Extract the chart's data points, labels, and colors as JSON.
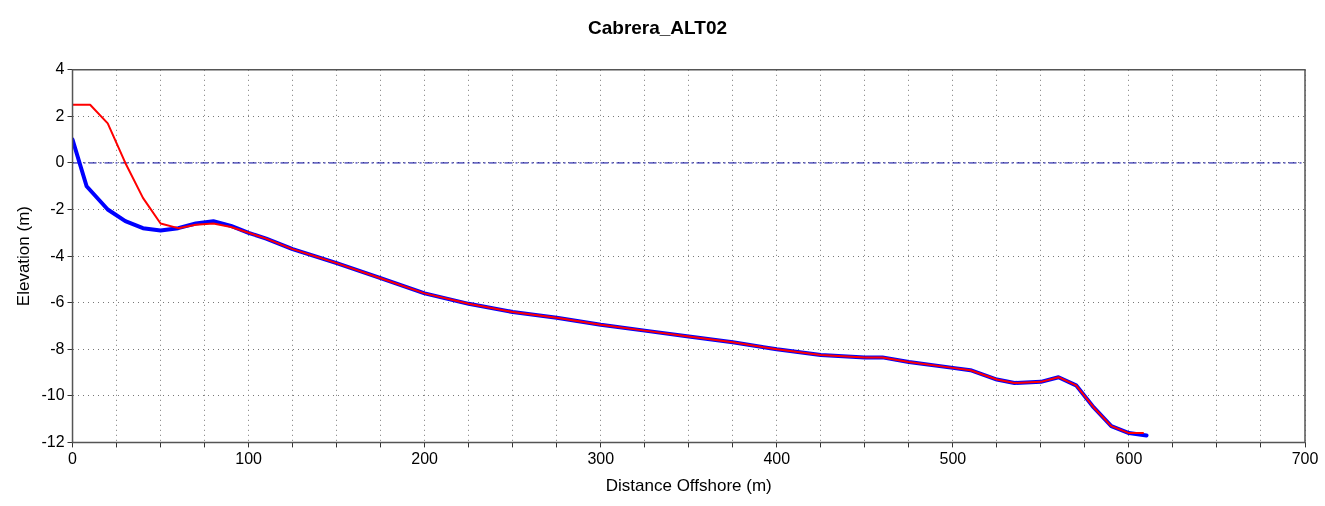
{
  "chart_data": {
    "type": "line",
    "title": "Cabrera_ALT02",
    "xlabel": "Distance Offshore (m)",
    "ylabel": "Elevation (m)",
    "xlim": [
      0,
      700
    ],
    "ylim": [
      -12,
      4
    ],
    "xticks": [
      0,
      {
        "value": 25,
        "label": null
      },
      {
        "value": 50,
        "label": null
      },
      {
        "value": 75,
        "label": null
      },
      100,
      {
        "value": 125,
        "label": null
      },
      {
        "value": 150,
        "label": null
      },
      {
        "value": 175,
        "label": null
      },
      200,
      {
        "value": 225,
        "label": null
      },
      {
        "value": 250,
        "label": null
      },
      {
        "value": 275,
        "label": null
      },
      300,
      {
        "value": 325,
        "label": null
      },
      {
        "value": 350,
        "label": null
      },
      {
        "value": 375,
        "label": null
      },
      400,
      {
        "value": 425,
        "label": null
      },
      {
        "value": 450,
        "label": null
      },
      {
        "value": 475,
        "label": null
      },
      500,
      {
        "value": 525,
        "label": null
      },
      {
        "value": 550,
        "label": null
      },
      {
        "value": 575,
        "label": null
      },
      600,
      {
        "value": 625,
        "label": null
      },
      {
        "value": 650,
        "label": null
      },
      {
        "value": 675,
        "label": null
      },
      700
    ],
    "yticks": [
      -12,
      -10,
      -8,
      -6,
      -4,
      -2,
      0,
      2,
      4
    ],
    "grid": true,
    "legend": false,
    "marker": "none",
    "line_style": "solid",
    "ref_lines": [
      {
        "axis": "y",
        "value": 0,
        "color": "#00009c",
        "line_style": "dashdot"
      }
    ],
    "series": [
      {
        "color": "#0000ff",
        "x": [
          0,
          8,
          20,
          30,
          40,
          50,
          60,
          70,
          80,
          90,
          100,
          110,
          125,
          150,
          175,
          200,
          225,
          250,
          275,
          300,
          325,
          350,
          375,
          400,
          425,
          450,
          460,
          475,
          500,
          510,
          525,
          535,
          550,
          560,
          570,
          580,
          590,
          600,
          610
        ],
        "values": [
          1.0,
          -1.0,
          -2.0,
          -2.5,
          -2.8,
          -2.9,
          -2.8,
          -2.6,
          -2.5,
          -2.7,
          -3.0,
          -3.25,
          -3.7,
          -4.3,
          -4.95,
          -5.6,
          -6.05,
          -6.4,
          -6.65,
          -6.95,
          -7.2,
          -7.45,
          -7.7,
          -8.0,
          -8.25,
          -8.35,
          -8.35,
          -8.55,
          -8.8,
          -8.9,
          -9.3,
          -9.45,
          -9.4,
          -9.2,
          -9.55,
          -10.5,
          -11.3,
          -11.6,
          -11.7
        ]
      },
      {
        "color": "#ff0000",
        "x": [
          0,
          10,
          20,
          30,
          40,
          50,
          60,
          70,
          80,
          90,
          100,
          110,
          125,
          150,
          175,
          200,
          225,
          250,
          275,
          300,
          325,
          350,
          375,
          400,
          425,
          450,
          460,
          475,
          500,
          510,
          525,
          535,
          550,
          560,
          570,
          580,
          590,
          600,
          608
        ],
        "values": [
          2.5,
          2.5,
          1.7,
          0,
          -1.5,
          -2.6,
          -2.8,
          -2.65,
          -2.6,
          -2.75,
          -3.0,
          -3.25,
          -3.7,
          -4.3,
          -4.95,
          -5.6,
          -6.05,
          -6.4,
          -6.65,
          -6.95,
          -7.2,
          -7.45,
          -7.7,
          -8.0,
          -8.25,
          -8.35,
          -8.35,
          -8.55,
          -8.8,
          -8.9,
          -9.3,
          -9.45,
          -9.4,
          -9.2,
          -9.55,
          -10.5,
          -11.3,
          -11.6,
          -11.6
        ]
      }
    ]
  }
}
